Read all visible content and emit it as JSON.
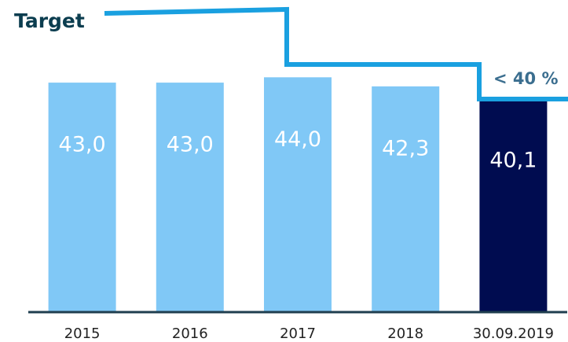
{
  "chart_data": {
    "type": "bar",
    "categories": [
      "2015",
      "2016",
      "2017",
      "2018",
      "30.09.2019"
    ],
    "values": [
      43.0,
      43.0,
      44.0,
      42.3,
      40.1
    ],
    "value_labels": [
      "43,0",
      "43,0",
      "44,0",
      "42,3",
      "40,1"
    ],
    "colors": [
      "#80c8f6",
      "#80c8f6",
      "#80c8f6",
      "#80c8f6",
      "#000c50"
    ],
    "ylim": [
      0,
      52
    ],
    "target_label": "Target",
    "target_annotation": "< 40 %"
  }
}
